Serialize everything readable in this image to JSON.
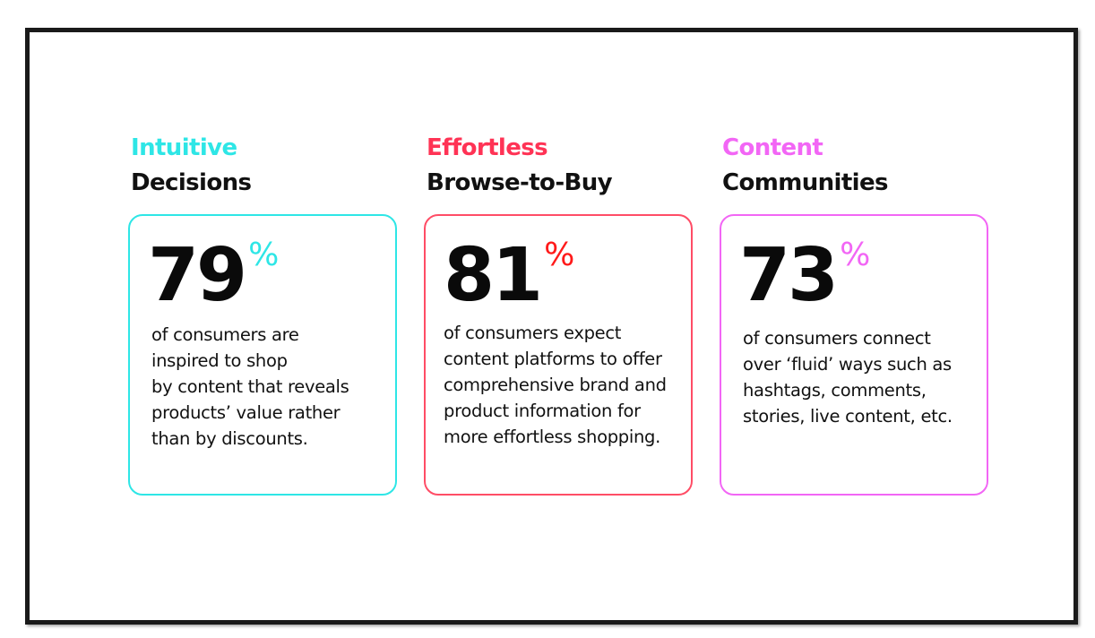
{
  "colors": {
    "cyan": "#2ee6e6",
    "red": "#ff3355",
    "magenta": "#f266f5",
    "red_percent": "#ff1a1a"
  },
  "cards": [
    {
      "accent_heading": "Intuitive",
      "main_heading": "Decisions",
      "number": "79",
      "percent": "%",
      "description_lines": [
        "of consumers are",
        "inspired to shop",
        "by content that reveals",
        "products’ value rather",
        "than by discounts."
      ]
    },
    {
      "accent_heading": "Effortless",
      "main_heading": "Browse-to-Buy",
      "number": "81",
      "percent": "%",
      "description_lines": [
        "of consumers expect",
        "content platforms to offer",
        "comprehensive brand and",
        "product information for",
        "more effortless shopping."
      ]
    },
    {
      "accent_heading": "Content",
      "main_heading": "Communities",
      "number": "73",
      "percent": "%",
      "description_lines": [
        "of consumers connect",
        "over ‘fluid’ ways such as",
        "hashtags, comments,",
        "stories, live content, etc."
      ]
    }
  ]
}
